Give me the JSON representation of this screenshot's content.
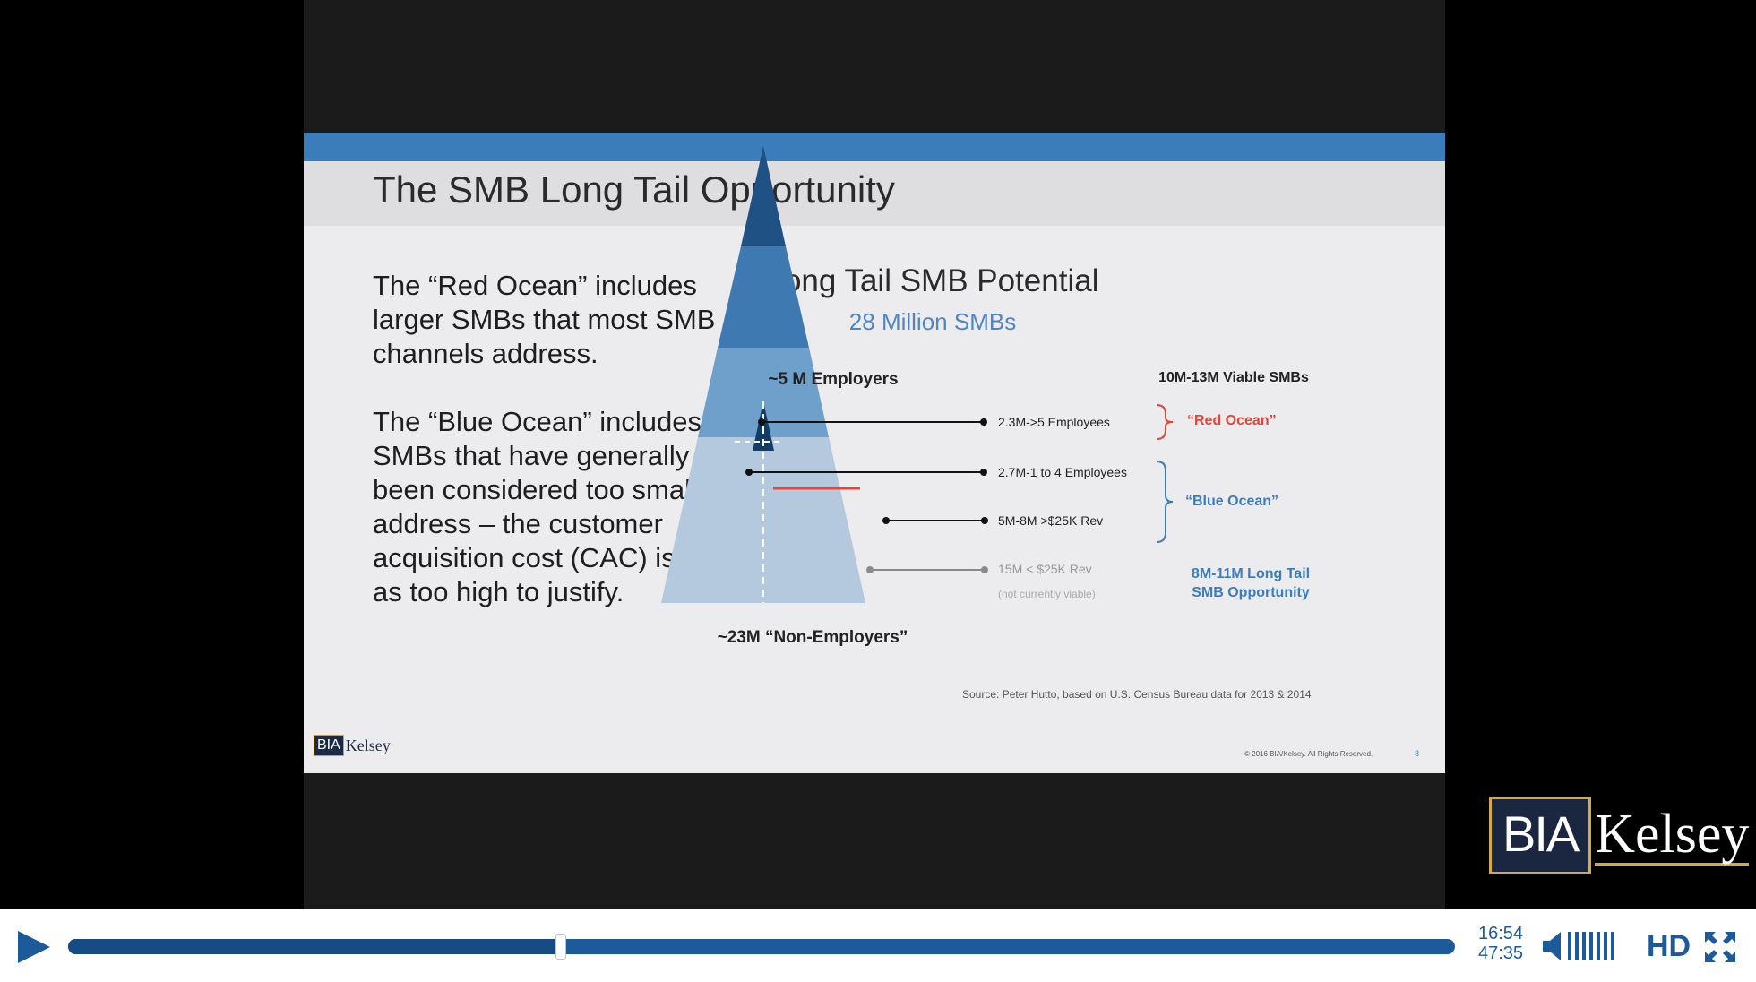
{
  "slide": {
    "title": "The SMB Long Tail Opportunity",
    "paragraphs": [
      "The “Red Ocean” includes larger SMBs that most SMB channels address.",
      "The “Blue Ocean” includes SMBs that have generally been considered too small to address – the customer acquisition cost (CAC) is seen as too high to justify."
    ],
    "source": "Source: Peter Hutto, based on U.S. Census Bureau data for 2013 & 2014",
    "copyright": "© 2016 BIA/Kelsey. All Rights Reserved.",
    "page_number": "8",
    "logo_text": {
      "left": "BIA",
      "right": "Kelsey"
    }
  },
  "chart": {
    "title": "Long Tail SMB Potential",
    "subtitle": "28 Million SMBs",
    "top_label": "~5 M Employers",
    "bottom_label": "~23M “Non-Employers”",
    "right_header": "10M-13M Viable SMBs",
    "tiers": [
      {
        "label": "2.3M->5 Employees",
        "muted": false
      },
      {
        "label": "2.7M-1 to 4 Employees",
        "muted": false
      },
      {
        "label": "5M-8M >$25K Rev",
        "muted": false
      },
      {
        "label": "15M < $25K Rev",
        "sublabel": "(not currently viable)",
        "muted": true
      }
    ],
    "red_ocean_label": "“Red Ocean”",
    "blue_ocean_label": "“Blue Ocean”",
    "opportunity_label": [
      "8M-11M Long Tail",
      "SMB Opportunity"
    ],
    "colors": {
      "red": "#e2463a",
      "blue": "#3b7dbb",
      "pyramid_light": "#b4c9dd",
      "pyramid_mid": "#6f9fcb",
      "pyramid_dark": "#3f79b2",
      "pyramid_top": "#1f5185"
    }
  },
  "watermark": {
    "left": "BIA",
    "right": "Kelsey"
  },
  "player": {
    "elapsed": "16:54",
    "duration": "47:35",
    "progress": 0.355,
    "hd_label": "HD",
    "volume_bars": 7,
    "accent_color": "#1d5a9a"
  }
}
